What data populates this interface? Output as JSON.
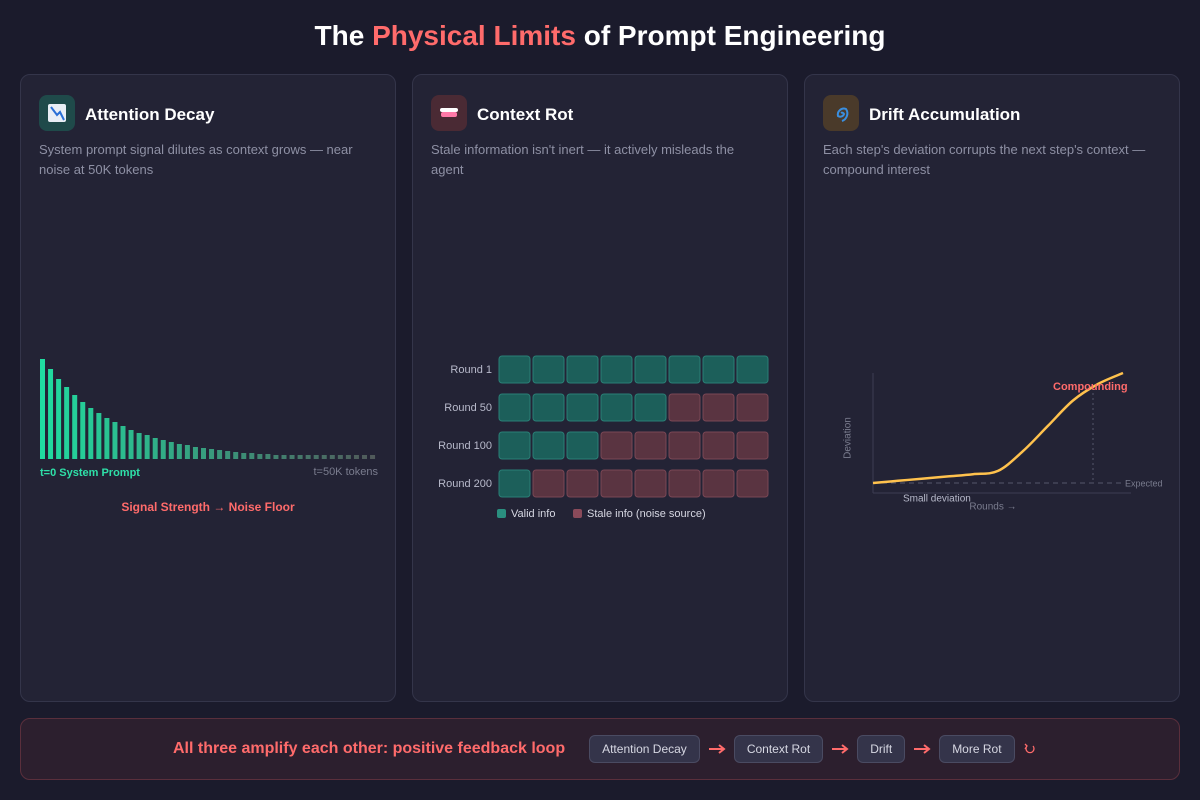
{
  "title": {
    "before": "The",
    "highlight": "Physical Limits",
    "after": "of Prompt Engineering"
  },
  "panels": [
    {
      "title": "Attention Decay",
      "description": "System prompt signal dilutes as context grows — near noise at 50K tokens",
      "chart": {
        "values": [
          100,
          90,
          80,
          72,
          64,
          57,
          51,
          46,
          41,
          37,
          33,
          29,
          26,
          24,
          21,
          19,
          17,
          15,
          14,
          12,
          11,
          10,
          9,
          8,
          7,
          6,
          6,
          5,
          5,
          4,
          4,
          4,
          4,
          4,
          4,
          4,
          4,
          4,
          4,
          4,
          4,
          4
        ],
        "start_label": "t=0 System Prompt",
        "end_label": "t=50K tokens",
        "caption": "Signal Strength → Noise Floor"
      }
    },
    {
      "title": "Context Rot",
      "description": "Stale information isn't inert — it actively misleads the agent",
      "rows": [
        {
          "label": "Round 1",
          "valid": 8,
          "stale": 0
        },
        {
          "label": "Round 50",
          "valid": 5,
          "stale": 3
        },
        {
          "label": "Round 100",
          "valid": 3,
          "stale": 5
        },
        {
          "label": "Round 200",
          "valid": 1,
          "stale": 7
        }
      ],
      "legend": {
        "valid": "Valid info",
        "stale": "Stale info (noise source)"
      }
    },
    {
      "title": "Drift Accumulation",
      "description": "Each step's deviation corrupts the next step's context — compound interest",
      "chart": {
        "curve": [
          0,
          2,
          4,
          6,
          8,
          11,
          29,
          52,
          75,
          90,
          100
        ],
        "y_label": "Deviation",
        "x_label": "Rounds →",
        "expected_label": "Expected",
        "start_label": "Small deviation",
        "end_label": "Compounding"
      }
    }
  ],
  "footer": {
    "text": "All three amplify each other: positive feedback loop",
    "loop": [
      "Attention Decay",
      "Context Rot",
      "Drift",
      "More Rot"
    ]
  }
}
